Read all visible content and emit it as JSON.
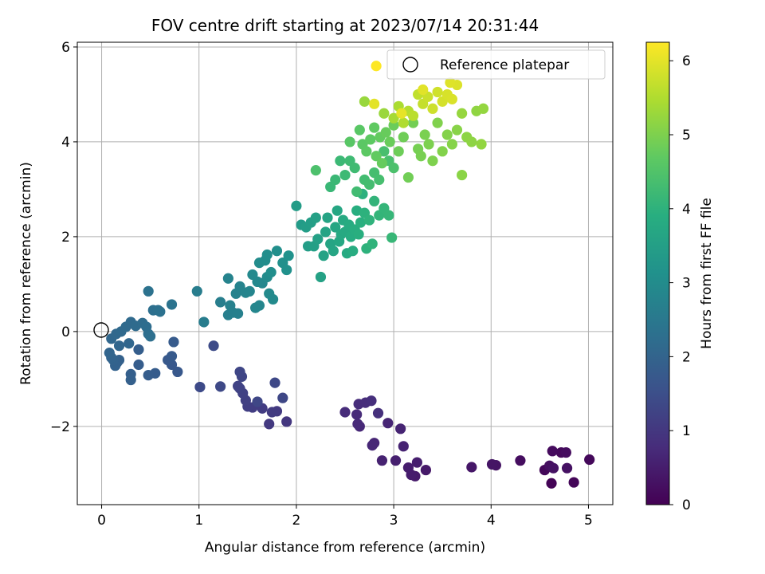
{
  "chart_data": {
    "type": "scatter",
    "title": "FOV centre drift starting at 2023/07/14 20:31:44",
    "xlabel": "Angular distance from reference (arcmin)",
    "ylabel": "Rotation from reference (arcmin)",
    "xlim": [
      -0.25,
      5.25
    ],
    "ylim": [
      -3.65,
      6.1
    ],
    "xticks": [
      0,
      1,
      2,
      3,
      4,
      5
    ],
    "xtick_labels": [
      "0",
      "1",
      "2",
      "3",
      "4",
      "5"
    ],
    "yticks": [
      -2,
      0,
      2,
      4,
      6
    ],
    "ytick_labels": [
      "−2",
      "0",
      "2",
      "4",
      "6"
    ],
    "grid": true,
    "legend": {
      "location": "upper right",
      "entries": [
        "Reference platepar"
      ]
    },
    "colorbar": {
      "label": "Hours from first FF file",
      "colormap": "viridis",
      "range": [
        0,
        6.25
      ],
      "ticks": [
        0,
        1,
        2,
        3,
        4,
        5,
        6
      ],
      "tick_labels": [
        "0",
        "1",
        "2",
        "3",
        "4",
        "5",
        "6"
      ]
    },
    "reference_point": {
      "x": 0,
      "y": 0
    },
    "points": [
      {
        "x": 4.62,
        "y": -3.2,
        "h": 0.05
      },
      {
        "x": 4.85,
        "y": -3.18,
        "h": 0.08
      },
      {
        "x": 4.55,
        "y": -2.92,
        "h": 0.1
      },
      {
        "x": 5.01,
        "y": -2.7,
        "h": 0.12
      },
      {
        "x": 4.72,
        "y": -2.55,
        "h": 0.15
      },
      {
        "x": 4.63,
        "y": -2.52,
        "h": 0.18
      },
      {
        "x": 4.77,
        "y": -2.55,
        "h": 0.2
      },
      {
        "x": 4.3,
        "y": -2.72,
        "h": 0.22
      },
      {
        "x": 4.6,
        "y": -2.83,
        "h": 0.25
      },
      {
        "x": 4.78,
        "y": -2.88,
        "h": 0.28
      },
      {
        "x": 4.64,
        "y": -2.88,
        "h": 0.3
      },
      {
        "x": 4.05,
        "y": -2.82,
        "h": 0.33
      },
      {
        "x": 4.01,
        "y": -2.8,
        "h": 0.35
      },
      {
        "x": 3.8,
        "y": -2.86,
        "h": 0.38
      },
      {
        "x": 3.33,
        "y": -2.92,
        "h": 0.42
      },
      {
        "x": 3.22,
        "y": -3.05,
        "h": 0.45
      },
      {
        "x": 3.18,
        "y": -3.02,
        "h": 0.48
      },
      {
        "x": 3.15,
        "y": -2.87,
        "h": 0.5
      },
      {
        "x": 3.24,
        "y": -2.76,
        "h": 0.52
      },
      {
        "x": 3.02,
        "y": -2.72,
        "h": 0.55
      },
      {
        "x": 2.88,
        "y": -2.72,
        "h": 0.58
      },
      {
        "x": 3.1,
        "y": -2.42,
        "h": 0.6
      },
      {
        "x": 3.07,
        "y": -2.05,
        "h": 0.62
      },
      {
        "x": 2.94,
        "y": -1.93,
        "h": 0.64
      },
      {
        "x": 2.8,
        "y": -2.35,
        "h": 0.66
      },
      {
        "x": 2.78,
        "y": -2.4,
        "h": 0.68
      },
      {
        "x": 2.65,
        "y": -2.0,
        "h": 0.7
      },
      {
        "x": 2.63,
        "y": -1.95,
        "h": 0.72
      },
      {
        "x": 2.62,
        "y": -1.75,
        "h": 0.74
      },
      {
        "x": 2.5,
        "y": -1.7,
        "h": 0.76
      },
      {
        "x": 2.64,
        "y": -1.53,
        "h": 0.78
      },
      {
        "x": 2.71,
        "y": -1.5,
        "h": 0.8
      },
      {
        "x": 2.77,
        "y": -1.46,
        "h": 0.82
      },
      {
        "x": 2.84,
        "y": -1.72,
        "h": 0.84
      },
      {
        "x": 1.9,
        "y": -1.9,
        "h": 1.0
      },
      {
        "x": 1.72,
        "y": -1.95,
        "h": 1.03
      },
      {
        "x": 1.8,
        "y": -1.68,
        "h": 1.06
      },
      {
        "x": 1.75,
        "y": -1.7,
        "h": 1.08
      },
      {
        "x": 1.65,
        "y": -1.62,
        "h": 1.1
      },
      {
        "x": 1.55,
        "y": -1.6,
        "h": 1.12
      },
      {
        "x": 1.5,
        "y": -1.58,
        "h": 1.15
      },
      {
        "x": 1.48,
        "y": -1.45,
        "h": 1.18
      },
      {
        "x": 1.45,
        "y": -1.3,
        "h": 1.2
      },
      {
        "x": 1.42,
        "y": -1.2,
        "h": 1.22
      },
      {
        "x": 1.4,
        "y": -1.15,
        "h": 1.25
      },
      {
        "x": 1.44,
        "y": -0.95,
        "h": 1.28
      },
      {
        "x": 1.42,
        "y": -0.85,
        "h": 1.3
      },
      {
        "x": 1.6,
        "y": -1.48,
        "h": 1.32
      },
      {
        "x": 1.86,
        "y": -1.4,
        "h": 1.34
      },
      {
        "x": 1.78,
        "y": -1.08,
        "h": 1.36
      },
      {
        "x": 1.22,
        "y": -1.16,
        "h": 1.38
      },
      {
        "x": 1.01,
        "y": -1.17,
        "h": 1.4
      },
      {
        "x": 1.15,
        "y": -0.3,
        "h": 1.42
      },
      {
        "x": 0.78,
        "y": -0.85,
        "h": 1.7
      },
      {
        "x": 0.72,
        "y": -0.7,
        "h": 1.72
      },
      {
        "x": 0.68,
        "y": -0.6,
        "h": 1.74
      },
      {
        "x": 0.72,
        "y": -0.52,
        "h": 1.76
      },
      {
        "x": 0.74,
        "y": -0.22,
        "h": 1.78
      },
      {
        "x": 0.55,
        "y": -0.88,
        "h": 1.8
      },
      {
        "x": 0.48,
        "y": -0.92,
        "h": 1.82
      },
      {
        "x": 0.38,
        "y": -0.7,
        "h": 1.84
      },
      {
        "x": 0.38,
        "y": -0.38,
        "h": 1.86
      },
      {
        "x": 0.3,
        "y": -0.9,
        "h": 1.88
      },
      {
        "x": 0.3,
        "y": -1.02,
        "h": 1.9
      },
      {
        "x": 0.18,
        "y": -0.6,
        "h": 1.92
      },
      {
        "x": 0.16,
        "y": -0.65,
        "h": 1.94
      },
      {
        "x": 0.14,
        "y": -0.72,
        "h": 1.96
      },
      {
        "x": 0.12,
        "y": -0.6,
        "h": 1.98
      },
      {
        "x": 0.1,
        "y": -0.55,
        "h": 2.0
      },
      {
        "x": 0.08,
        "y": -0.45,
        "h": 2.02
      },
      {
        "x": 0.18,
        "y": -0.3,
        "h": 2.04
      },
      {
        "x": 0.28,
        "y": -0.25,
        "h": 2.06
      },
      {
        "x": 0.1,
        "y": -0.15,
        "h": 2.08
      },
      {
        "x": 0.15,
        "y": -0.05,
        "h": 2.1
      },
      {
        "x": 0.2,
        "y": 0.0,
        "h": 2.12
      },
      {
        "x": 0.25,
        "y": 0.1,
        "h": 2.14
      },
      {
        "x": 0.3,
        "y": 0.2,
        "h": 2.16
      },
      {
        "x": 0.35,
        "y": 0.12,
        "h": 2.18
      },
      {
        "x": 0.42,
        "y": 0.18,
        "h": 2.2
      },
      {
        "x": 0.46,
        "y": 0.1,
        "h": 2.22
      },
      {
        "x": 0.48,
        "y": -0.05,
        "h": 2.24
      },
      {
        "x": 0.5,
        "y": -0.1,
        "h": 2.26
      },
      {
        "x": 0.53,
        "y": 0.45,
        "h": 2.28
      },
      {
        "x": 0.58,
        "y": 0.45,
        "h": 2.3
      },
      {
        "x": 0.6,
        "y": 0.42,
        "h": 2.32
      },
      {
        "x": 0.48,
        "y": 0.85,
        "h": 2.34
      },
      {
        "x": 0.72,
        "y": 0.57,
        "h": 2.36
      },
      {
        "x": 1.05,
        "y": 0.2,
        "h": 2.6
      },
      {
        "x": 0.98,
        "y": 0.85,
        "h": 2.62
      },
      {
        "x": 1.22,
        "y": 0.62,
        "h": 2.64
      },
      {
        "x": 1.3,
        "y": 0.35,
        "h": 2.66
      },
      {
        "x": 1.35,
        "y": 0.4,
        "h": 2.68
      },
      {
        "x": 1.4,
        "y": 0.38,
        "h": 2.7
      },
      {
        "x": 1.32,
        "y": 0.55,
        "h": 2.72
      },
      {
        "x": 1.38,
        "y": 0.8,
        "h": 2.74
      },
      {
        "x": 1.3,
        "y": 1.12,
        "h": 2.76
      },
      {
        "x": 1.42,
        "y": 0.95,
        "h": 2.78
      },
      {
        "x": 1.48,
        "y": 0.82,
        "h": 2.8
      },
      {
        "x": 1.52,
        "y": 0.85,
        "h": 2.82
      },
      {
        "x": 1.58,
        "y": 0.5,
        "h": 2.84
      },
      {
        "x": 1.62,
        "y": 0.55,
        "h": 2.86
      },
      {
        "x": 1.65,
        "y": 1.02,
        "h": 2.88
      },
      {
        "x": 1.6,
        "y": 1.05,
        "h": 2.9
      },
      {
        "x": 1.55,
        "y": 1.2,
        "h": 2.92
      },
      {
        "x": 1.72,
        "y": 0.8,
        "h": 2.94
      },
      {
        "x": 1.76,
        "y": 0.68,
        "h": 2.96
      },
      {
        "x": 1.7,
        "y": 1.15,
        "h": 2.98
      },
      {
        "x": 1.62,
        "y": 1.45,
        "h": 3.0
      },
      {
        "x": 1.68,
        "y": 1.5,
        "h": 3.02
      },
      {
        "x": 1.7,
        "y": 1.62,
        "h": 3.04
      },
      {
        "x": 1.74,
        "y": 1.25,
        "h": 3.06
      },
      {
        "x": 1.8,
        "y": 1.7,
        "h": 3.08
      },
      {
        "x": 1.86,
        "y": 1.45,
        "h": 3.1
      },
      {
        "x": 1.9,
        "y": 1.3,
        "h": 3.12
      },
      {
        "x": 1.92,
        "y": 1.6,
        "h": 3.14
      },
      {
        "x": 2.05,
        "y": 2.25,
        "h": 3.4
      },
      {
        "x": 2.0,
        "y": 2.65,
        "h": 3.42
      },
      {
        "x": 2.1,
        "y": 2.2,
        "h": 3.44
      },
      {
        "x": 2.12,
        "y": 1.8,
        "h": 3.46
      },
      {
        "x": 2.15,
        "y": 2.3,
        "h": 3.48
      },
      {
        "x": 2.18,
        "y": 1.8,
        "h": 3.5
      },
      {
        "x": 2.2,
        "y": 2.4,
        "h": 3.52
      },
      {
        "x": 2.22,
        "y": 1.95,
        "h": 3.54
      },
      {
        "x": 2.25,
        "y": 1.15,
        "h": 3.56
      },
      {
        "x": 2.28,
        "y": 1.6,
        "h": 3.58
      },
      {
        "x": 2.3,
        "y": 2.1,
        "h": 3.6
      },
      {
        "x": 2.32,
        "y": 2.4,
        "h": 3.62
      },
      {
        "x": 2.35,
        "y": 1.85,
        "h": 3.64
      },
      {
        "x": 2.38,
        "y": 1.7,
        "h": 3.66
      },
      {
        "x": 2.4,
        "y": 2.2,
        "h": 3.68
      },
      {
        "x": 2.42,
        "y": 2.55,
        "h": 3.7
      },
      {
        "x": 2.44,
        "y": 1.9,
        "h": 3.72
      },
      {
        "x": 2.46,
        "y": 2.05,
        "h": 3.74
      },
      {
        "x": 2.48,
        "y": 2.35,
        "h": 3.76
      },
      {
        "x": 2.5,
        "y": 2.1,
        "h": 3.78
      },
      {
        "x": 2.52,
        "y": 1.65,
        "h": 3.8
      },
      {
        "x": 2.54,
        "y": 2.25,
        "h": 3.82
      },
      {
        "x": 2.56,
        "y": 2.0,
        "h": 3.84
      },
      {
        "x": 2.58,
        "y": 1.7,
        "h": 3.86
      },
      {
        "x": 2.6,
        "y": 2.15,
        "h": 3.88
      },
      {
        "x": 2.62,
        "y": 2.55,
        "h": 3.9
      },
      {
        "x": 2.64,
        "y": 2.05,
        "h": 3.92
      },
      {
        "x": 2.66,
        "y": 2.3,
        "h": 3.94
      },
      {
        "x": 2.68,
        "y": 2.9,
        "h": 3.96
      },
      {
        "x": 2.7,
        "y": 2.5,
        "h": 3.98
      },
      {
        "x": 2.72,
        "y": 1.75,
        "h": 4.0
      },
      {
        "x": 2.75,
        "y": 2.35,
        "h": 4.02
      },
      {
        "x": 2.78,
        "y": 1.85,
        "h": 4.04
      },
      {
        "x": 2.8,
        "y": 2.75,
        "h": 4.06
      },
      {
        "x": 2.85,
        "y": 2.45,
        "h": 4.08
      },
      {
        "x": 2.9,
        "y": 2.6,
        "h": 4.1
      },
      {
        "x": 2.95,
        "y": 2.45,
        "h": 4.12
      },
      {
        "x": 2.98,
        "y": 1.98,
        "h": 4.14
      },
      {
        "x": 2.35,
        "y": 3.05,
        "h": 4.16
      },
      {
        "x": 2.4,
        "y": 3.2,
        "h": 4.18
      },
      {
        "x": 2.45,
        "y": 3.6,
        "h": 4.2
      },
      {
        "x": 2.5,
        "y": 3.3,
        "h": 4.22
      },
      {
        "x": 2.55,
        "y": 3.6,
        "h": 4.24
      },
      {
        "x": 2.6,
        "y": 3.45,
        "h": 4.26
      },
      {
        "x": 2.62,
        "y": 2.95,
        "h": 4.28
      },
      {
        "x": 2.7,
        "y": 3.2,
        "h": 4.3
      },
      {
        "x": 2.75,
        "y": 3.1,
        "h": 4.32
      },
      {
        "x": 2.8,
        "y": 3.35,
        "h": 4.34
      },
      {
        "x": 2.85,
        "y": 3.2,
        "h": 4.36
      },
      {
        "x": 2.9,
        "y": 3.8,
        "h": 4.38
      },
      {
        "x": 2.95,
        "y": 3.6,
        "h": 4.4
      },
      {
        "x": 3.0,
        "y": 3.45,
        "h": 4.42
      },
      {
        "x": 2.2,
        "y": 3.4,
        "h": 4.44
      },
      {
        "x": 2.55,
        "y": 4.0,
        "h": 4.6
      },
      {
        "x": 2.65,
        "y": 4.25,
        "h": 4.62
      },
      {
        "x": 2.68,
        "y": 3.95,
        "h": 4.64
      },
      {
        "x": 2.72,
        "y": 3.8,
        "h": 4.66
      },
      {
        "x": 2.76,
        "y": 4.05,
        "h": 4.68
      },
      {
        "x": 2.8,
        "y": 4.3,
        "h": 4.7
      },
      {
        "x": 2.82,
        "y": 3.7,
        "h": 4.72
      },
      {
        "x": 2.86,
        "y": 4.1,
        "h": 4.74
      },
      {
        "x": 2.88,
        "y": 3.55,
        "h": 4.76
      },
      {
        "x": 2.92,
        "y": 4.2,
        "h": 4.78
      },
      {
        "x": 2.96,
        "y": 4.0,
        "h": 4.8
      },
      {
        "x": 3.0,
        "y": 4.35,
        "h": 4.82
      },
      {
        "x": 3.05,
        "y": 3.8,
        "h": 4.84
      },
      {
        "x": 3.1,
        "y": 4.1,
        "h": 4.86
      },
      {
        "x": 3.15,
        "y": 3.25,
        "h": 4.88
      },
      {
        "x": 3.2,
        "y": 4.4,
        "h": 4.9
      },
      {
        "x": 3.25,
        "y": 3.85,
        "h": 4.92
      },
      {
        "x": 3.28,
        "y": 3.7,
        "h": 4.94
      },
      {
        "x": 3.32,
        "y": 4.15,
        "h": 4.96
      },
      {
        "x": 3.36,
        "y": 3.95,
        "h": 4.98
      },
      {
        "x": 3.4,
        "y": 3.6,
        "h": 5.0
      },
      {
        "x": 3.45,
        "y": 4.4,
        "h": 5.02
      },
      {
        "x": 3.5,
        "y": 3.8,
        "h": 5.04
      },
      {
        "x": 3.55,
        "y": 4.15,
        "h": 5.06
      },
      {
        "x": 3.6,
        "y": 3.95,
        "h": 5.08
      },
      {
        "x": 3.65,
        "y": 4.25,
        "h": 5.1
      },
      {
        "x": 3.7,
        "y": 3.3,
        "h": 5.12
      },
      {
        "x": 3.75,
        "y": 4.1,
        "h": 5.14
      },
      {
        "x": 3.8,
        "y": 4.0,
        "h": 5.16
      },
      {
        "x": 3.85,
        "y": 4.65,
        "h": 5.18
      },
      {
        "x": 3.9,
        "y": 3.95,
        "h": 5.2
      },
      {
        "x": 3.92,
        "y": 4.7,
        "h": 5.22
      },
      {
        "x": 3.7,
        "y": 4.6,
        "h": 5.24
      },
      {
        "x": 2.7,
        "y": 4.85,
        "h": 5.26
      },
      {
        "x": 2.9,
        "y": 4.6,
        "h": 5.28
      },
      {
        "x": 3.0,
        "y": 4.5,
        "h": 5.4
      },
      {
        "x": 3.05,
        "y": 4.75,
        "h": 5.45
      },
      {
        "x": 3.1,
        "y": 4.4,
        "h": 5.5
      },
      {
        "x": 3.15,
        "y": 4.65,
        "h": 5.55
      },
      {
        "x": 3.2,
        "y": 4.55,
        "h": 5.6
      },
      {
        "x": 3.25,
        "y": 5.0,
        "h": 5.65
      },
      {
        "x": 3.3,
        "y": 4.8,
        "h": 5.7
      },
      {
        "x": 3.35,
        "y": 4.95,
        "h": 5.75
      },
      {
        "x": 3.4,
        "y": 4.7,
        "h": 5.78
      },
      {
        "x": 3.45,
        "y": 5.05,
        "h": 5.8
      },
      {
        "x": 3.5,
        "y": 4.85,
        "h": 5.85
      },
      {
        "x": 3.55,
        "y": 5.0,
        "h": 5.88
      },
      {
        "x": 3.6,
        "y": 4.9,
        "h": 5.9
      },
      {
        "x": 3.65,
        "y": 5.2,
        "h": 5.92
      },
      {
        "x": 3.58,
        "y": 5.25,
        "h": 5.95
      },
      {
        "x": 3.3,
        "y": 5.1,
        "h": 5.98
      },
      {
        "x": 2.8,
        "y": 4.8,
        "h": 6.0
      },
      {
        "x": 3.08,
        "y": 4.6,
        "h": 6.03
      },
      {
        "x": 2.82,
        "y": 5.6,
        "h": 6.25
      }
    ]
  }
}
